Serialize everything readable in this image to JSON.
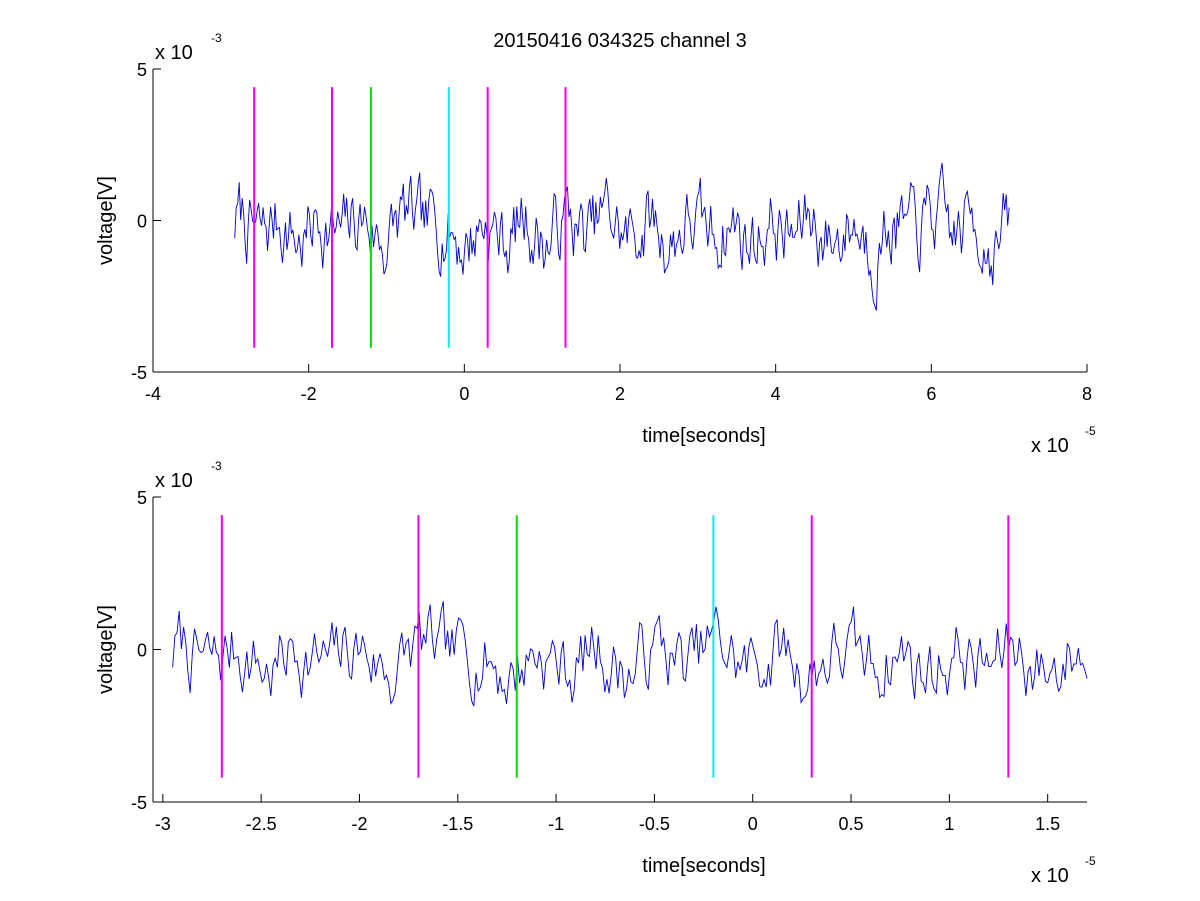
{
  "figure": {
    "title": "20150416 034325 channel 3"
  },
  "chart_data": [
    {
      "type": "line",
      "title": "20150416 034325 channel 3",
      "xlabel": "time[seconds]",
      "ylabel": "voltage[V]",
      "x_multiplier": {
        "base": "x 10",
        "exp": "-5"
      },
      "y_multiplier": {
        "base": "x 10",
        "exp": "-3"
      },
      "xlim": [
        -4,
        8
      ],
      "ylim": [
        -5,
        5
      ],
      "x_ticks": [
        -4,
        -2,
        0,
        2,
        4,
        6,
        8
      ],
      "x_tick_labels": [
        "-4",
        "-2",
        "0",
        "2",
        "4",
        "6",
        "8"
      ],
      "y_ticks": [
        -5,
        0,
        5
      ],
      "y_tick_labels": [
        "-5",
        "0",
        "5"
      ],
      "grid": false,
      "signal": {
        "color": "#0000cc",
        "x_range": [
          -2.95,
          7.0
        ],
        "samples": 520,
        "seed": 7,
        "amplitude": 1.15,
        "offset": -0.3
      },
      "markers": [
        {
          "x": -2.7,
          "color": "#ee00ee",
          "y_range": [
            -4.2,
            4.4
          ]
        },
        {
          "x": -1.7,
          "color": "#ee00ee",
          "y_range": [
            -4.2,
            4.4
          ]
        },
        {
          "x": -1.2,
          "color": "#00dd00",
          "y_range": [
            -4.2,
            4.4
          ]
        },
        {
          "x": -0.2,
          "color": "#00eeee",
          "y_range": [
            -4.2,
            4.4
          ]
        },
        {
          "x": 0.3,
          "color": "#ee00ee",
          "y_range": [
            -4.2,
            4.4
          ]
        },
        {
          "x": 1.3,
          "color": "#ee00ee",
          "y_range": [
            -4.2,
            4.4
          ]
        }
      ]
    },
    {
      "type": "line",
      "title": "",
      "xlabel": "time[seconds]",
      "ylabel": "voltage[V]",
      "x_multiplier": {
        "base": "x 10",
        "exp": "-5"
      },
      "y_multiplier": {
        "base": "x 10",
        "exp": "-3"
      },
      "xlim": [
        -3.05,
        1.7
      ],
      "ylim": [
        -5,
        5
      ],
      "x_ticks": [
        -3,
        -2.5,
        -2,
        -1.5,
        -1,
        -0.5,
        0,
        0.5,
        1,
        1.5
      ],
      "x_tick_labels": [
        "-3",
        "-2.5",
        "-2",
        "-1.5",
        "-1",
        "-0.5",
        "0",
        "0.5",
        "1",
        "1.5"
      ],
      "y_ticks": [
        -5,
        0,
        5
      ],
      "y_tick_labels": [
        "-5",
        "0",
        "5"
      ],
      "grid": false,
      "signal": {
        "color": "#0000cc",
        "x_range": [
          -2.95,
          1.7
        ],
        "samples": 420,
        "seed": 7,
        "amplitude": 1.15,
        "offset": -0.3
      },
      "markers": [
        {
          "x": -2.7,
          "color": "#ee00ee",
          "y_range": [
            -4.2,
            4.4
          ]
        },
        {
          "x": -1.7,
          "color": "#ee00ee",
          "y_range": [
            -4.2,
            4.4
          ]
        },
        {
          "x": -1.2,
          "color": "#00dd00",
          "y_range": [
            -4.2,
            4.4
          ]
        },
        {
          "x": -0.2,
          "color": "#00eeee",
          "y_range": [
            -4.2,
            4.4
          ]
        },
        {
          "x": 0.3,
          "color": "#ee00ee",
          "y_range": [
            -4.2,
            4.4
          ]
        },
        {
          "x": 1.3,
          "color": "#ee00ee",
          "y_range": [
            -4.2,
            4.4
          ]
        }
      ]
    }
  ]
}
